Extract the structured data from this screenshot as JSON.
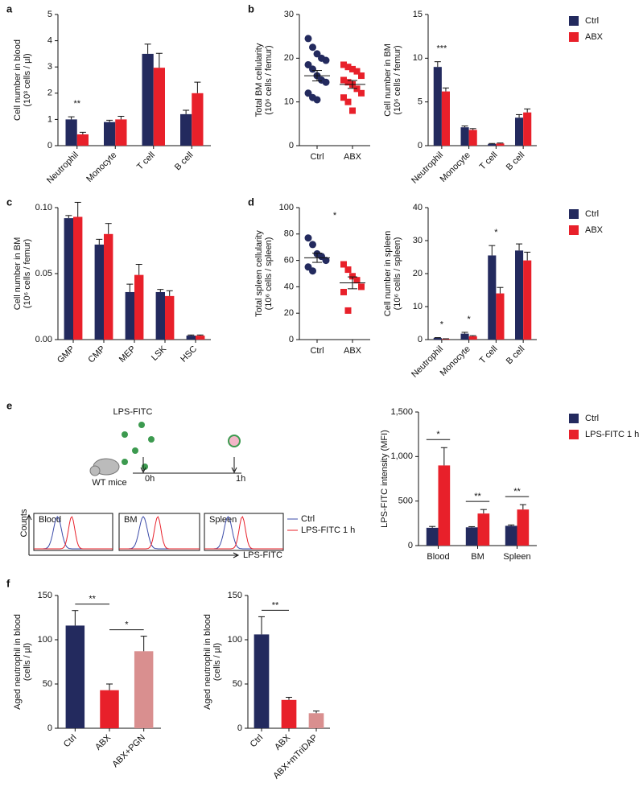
{
  "panel_labels": [
    "a",
    "b",
    "c",
    "d",
    "e",
    "f"
  ],
  "chart_data": [
    {
      "type": "bar",
      "ylabel": [
        "Cell number in blood",
        "(10³ cells / µl)"
      ],
      "categories": [
        "Neutrophil",
        "Monocyte",
        "T cell",
        "B cell"
      ],
      "series": [
        {
          "color": "#232a5e",
          "values": [
            1.0,
            0.9,
            3.5,
            1.2
          ],
          "errors": [
            0.1,
            0.07,
            0.37,
            0.15
          ]
        },
        {
          "color": "#e8202a",
          "values": [
            0.43,
            1.0,
            2.97,
            2.0
          ],
          "errors": [
            0.08,
            0.12,
            0.55,
            0.42
          ]
        }
      ],
      "ylim": [
        0,
        5
      ],
      "yticks": [
        0,
        1,
        2,
        3,
        4,
        5
      ],
      "rotate_labels": true,
      "annotations": [
        {
          "text": "**",
          "category": "Neutrophil"
        }
      ]
    },
    {
      "type": "strip",
      "ylabel": [
        "Total BM cellularity",
        "(10⁶ cells / femur)"
      ],
      "groups": [
        {
          "name": "Ctrl",
          "color": "#232a5e",
          "marker": "circle",
          "values": [
            24.5,
            22.5,
            21,
            20,
            19.5,
            18.5,
            17.5,
            16,
            15,
            14.5,
            12,
            11,
            10.5
          ],
          "mean": 16,
          "sem": 1.2
        },
        {
          "name": "ABX",
          "color": "#e8202a",
          "marker": "square",
          "values": [
            18.5,
            18,
            17.5,
            17,
            16,
            15,
            14.5,
            14,
            13,
            12,
            11,
            10,
            8
          ],
          "mean": 14,
          "sem": 0.9
        }
      ],
      "ylim": [
        0,
        30
      ],
      "yticks": [
        0,
        10,
        20,
        30
      ]
    },
    {
      "type": "bar",
      "ylabel": [
        "Cell number in BM",
        "(10⁶ cells / femur)"
      ],
      "categories": [
        "Neutrophil",
        "Monocyte",
        "T cell",
        "B cell"
      ],
      "series": [
        {
          "name": "Ctrl",
          "color": "#232a5e",
          "values": [
            9.0,
            2.1,
            0.2,
            3.2
          ],
          "errors": [
            0.6,
            0.15,
            0.05,
            0.35
          ]
        },
        {
          "name": "ABX",
          "color": "#e8202a",
          "values": [
            6.2,
            1.8,
            0.25,
            3.8
          ],
          "errors": [
            0.4,
            0.15,
            0.05,
            0.4
          ]
        }
      ],
      "ylim": [
        0,
        15
      ],
      "yticks": [
        0,
        5,
        10,
        15
      ],
      "rotate_labels": true,
      "legend": "right",
      "annotations": [
        {
          "text": "***",
          "category": "Neutrophil"
        }
      ]
    },
    {
      "type": "bar",
      "ylabel": [
        "Cell number in BM",
        "(10⁶ cells / femur)"
      ],
      "categories": [
        "GMP",
        "CMP",
        "MEP",
        "LSK",
        "HSC"
      ],
      "series": [
        {
          "color": "#232a5e",
          "values": [
            0.092,
            0.072,
            0.036,
            0.036,
            0.003
          ],
          "errors": [
            0.002,
            0.004,
            0.006,
            0.002,
            0.0005
          ]
        },
        {
          "color": "#e8202a",
          "values": [
            0.093,
            0.08,
            0.049,
            0.033,
            0.003
          ],
          "errors": [
            0.011,
            0.008,
            0.008,
            0.004,
            0.0005
          ]
        }
      ],
      "ylim": [
        0,
        0.1
      ],
      "yticks": [
        {
          "value": 0,
          "label": "0.00"
        },
        {
          "value": 0.05,
          "label": "0.05"
        },
        {
          "value": 0.1,
          "label": "0.10"
        }
      ],
      "rotate_labels": true
    },
    {
      "type": "strip",
      "ylabel": [
        "Total spleen cellularity",
        "(10⁶ cells / spleen)"
      ],
      "groups": [
        {
          "name": "Ctrl",
          "color": "#232a5e",
          "marker": "circle",
          "values": [
            77,
            72,
            65,
            63,
            60,
            55,
            52
          ],
          "mean": 62,
          "sem": 3.5
        },
        {
          "name": "ABX",
          "color": "#e8202a",
          "marker": "square",
          "values": [
            57,
            53,
            48,
            45,
            40,
            36,
            22
          ],
          "mean": 43,
          "sem": 4.5
        }
      ],
      "ylim": [
        0,
        100
      ],
      "yticks": [
        0,
        20,
        40,
        60,
        80,
        100
      ],
      "annotations": [
        {
          "text": "*"
        }
      ]
    },
    {
      "type": "bar",
      "ylabel": [
        "Cell number in spleen",
        "(10⁶ cells / spleen)"
      ],
      "categories": [
        "Neutrophil",
        "Monocyte",
        "T cell",
        "B cell"
      ],
      "series": [
        {
          "name": "Ctrl",
          "color": "#232a5e",
          "values": [
            0.5,
            1.8,
            25.5,
            27
          ],
          "errors": [
            0.1,
            0.4,
            3,
            2
          ]
        },
        {
          "name": "ABX",
          "color": "#e8202a",
          "values": [
            0.2,
            1.0,
            14,
            24
          ],
          "errors": [
            0.05,
            0.2,
            1.8,
            2.5
          ]
        }
      ],
      "ylim": [
        0,
        40
      ],
      "yticks": [
        0,
        10,
        20,
        30,
        40
      ],
      "rotate_labels": true,
      "legend": "right",
      "annotations": [
        {
          "text": "*",
          "category": "Neutrophil"
        },
        {
          "text": "*",
          "category": "Monocyte"
        },
        {
          "text": "*",
          "category": "T cell"
        }
      ]
    },
    {
      "type": "bar",
      "ylabel": [
        "LPS-FITC intensity (MFI)"
      ],
      "categories": [
        "Blood",
        "BM",
        "Spleen"
      ],
      "series": [
        {
          "name": "Ctrl",
          "color": "#232a5e",
          "values": [
            200,
            205,
            222
          ],
          "errors": [
            15,
            8,
            10
          ]
        },
        {
          "name": "LPS-FITC 1 h",
          "color": "#e8202a",
          "values": [
            900,
            360,
            405
          ],
          "errors": [
            200,
            45,
            55
          ]
        }
      ],
      "ylim": [
        0,
        1500
      ],
      "yticks": [
        0,
        500,
        {
          "value": 1000,
          "label": "1,000"
        },
        {
          "value": 1500,
          "label": "1,500"
        }
      ],
      "legend": "right",
      "annotations": [
        {
          "text": "*",
          "category": "Blood",
          "line": true
        },
        {
          "text": "**",
          "category": "BM",
          "line": true
        },
        {
          "text": "**",
          "category": "Spleen",
          "line": true
        }
      ]
    },
    {
      "type": "bar",
      "ylabel": [
        "Aged neutrophil in blood",
        "(cells / µl)"
      ],
      "categories": [
        "Ctrl",
        "ABX",
        "ABX+PGN"
      ],
      "values": [
        116,
        43,
        87
      ],
      "errors": [
        17,
        7,
        17
      ],
      "colors": [
        "#232a5e",
        "#e8202a",
        "#d98f8f"
      ],
      "ylim": [
        0,
        150
      ],
      "yticks": [
        0,
        50,
        100,
        150
      ],
      "rotate_labels": true,
      "annotations": [
        {
          "text": "**",
          "from": "Ctrl",
          "to": "ABX"
        },
        {
          "text": "*",
          "from": "ABX",
          "to": "ABX+PGN"
        }
      ]
    },
    {
      "type": "bar",
      "ylabel": [
        "Aged neutrophil in blood",
        "(cells / µl)"
      ],
      "categories": [
        "Ctrl",
        "ABX",
        "ABX+mTriDAP"
      ],
      "values": [
        106,
        32,
        17
      ],
      "errors": [
        20,
        3,
        2.5
      ],
      "colors": [
        "#232a5e",
        "#e8202a",
        "#d98f8f"
      ],
      "ylim": [
        0,
        150
      ],
      "yticks": [
        0,
        50,
        100,
        150
      ],
      "rotate_labels": true,
      "annotations": [
        {
          "text": "**",
          "from": "Ctrl",
          "to": "ABX"
        }
      ]
    }
  ],
  "schematic": {
    "title": "LPS-FITC",
    "mouse_label": "WT mice",
    "times": [
      "0h",
      "1h"
    ],
    "y_axis": "Counts",
    "x_axis": "LPS-FITC",
    "tissues": [
      "Blood",
      "BM",
      "Spleen"
    ],
    "legend": [
      {
        "name": "Ctrl",
        "color": "#3b4ba8"
      },
      {
        "name": "LPS-FITC 1 h",
        "color": "#e8202a"
      }
    ]
  }
}
